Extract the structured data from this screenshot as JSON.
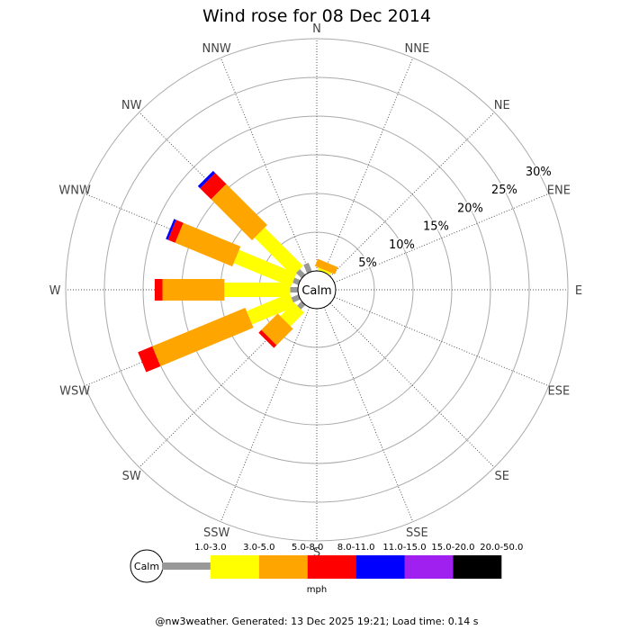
{
  "chart_data": {
    "type": "windrose",
    "title": "Wind rose for 08 Dec 2014",
    "directions": [
      "N",
      "NNE",
      "NE",
      "ENE",
      "E",
      "ESE",
      "SE",
      "SSE",
      "S",
      "SSW",
      "SW",
      "WSW",
      "W",
      "WNW",
      "NW",
      "NNW"
    ],
    "radial_ticks": [
      "5%",
      "10%",
      "15%",
      "20%",
      "25%",
      "30%"
    ],
    "radial_values": [
      5,
      10,
      15,
      20,
      25,
      30
    ],
    "calm_label": "Calm",
    "units_label": "mph",
    "footer": "@nw3weather. Generated: 13 Dec 2025 19:21; Load time: 0.14 s",
    "legend": [
      {
        "label": "",
        "color": "#999999"
      },
      {
        "label": "1.0-3.0",
        "color": "#ffff00"
      },
      {
        "label": "3.0-5.0",
        "color": "#ffa500"
      },
      {
        "label": "5.0-8.0",
        "color": "#ff0000"
      },
      {
        "label": "8.0-11.0",
        "color": "#0000ff"
      },
      {
        "label": "11.0-15.0",
        "color": "#a020f0"
      },
      {
        "label": "15.0-20.0",
        "color": "#000000"
      },
      {
        "label": "20.0-50.0",
        "color": ""
      }
    ],
    "bins": [
      "0-1",
      "1-3",
      "3-5",
      "5-8",
      "8-11"
    ],
    "series": [
      {
        "direction": "NNW",
        "values": [
          1.2,
          0,
          0,
          0,
          0
        ]
      },
      {
        "direction": "NW",
        "values": [
          1.0,
          7.0,
          7.5,
          2.0,
          0.4
        ]
      },
      {
        "direction": "WNW",
        "values": [
          0.8,
          8.0,
          8.0,
          1.0,
          0.3
        ]
      },
      {
        "direction": "W",
        "values": [
          1.0,
          8.5,
          8.0,
          1.0,
          0
        ]
      },
      {
        "direction": "WSW",
        "values": [
          1.0,
          6.0,
          13.0,
          2.0,
          0
        ]
      },
      {
        "direction": "SW",
        "values": [
          0.8,
          2.5,
          3.0,
          0.5,
          0
        ]
      },
      {
        "direction": "NNE",
        "values": [
          0,
          0.3,
          1.0,
          0,
          0
        ]
      }
    ]
  }
}
